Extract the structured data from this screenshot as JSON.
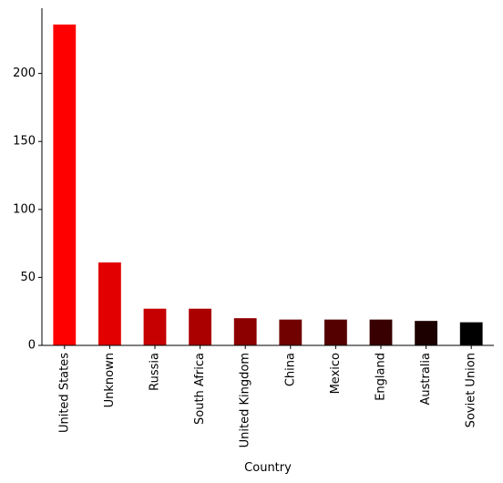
{
  "chart_data": {
    "type": "bar",
    "title": "",
    "xlabel": "Country",
    "ylabel": "",
    "categories": [
      "United States",
      "Unknown",
      "Russia",
      "South Africa",
      "United Kingdom",
      "China",
      "Mexico",
      "England",
      "Australia",
      "Soviet Union"
    ],
    "values": [
      236,
      61,
      27,
      27,
      20,
      19,
      19,
      19,
      18,
      17
    ],
    "bar_colors": [
      "#ff0000",
      "#e20000",
      "#c60000",
      "#aa0000",
      "#8d0000",
      "#710000",
      "#550000",
      "#380000",
      "#1c0000",
      "#000000"
    ],
    "yticks": [
      0,
      50,
      100,
      150,
      200
    ],
    "ylim": [
      0,
      248
    ],
    "grid": false,
    "legend": "none"
  }
}
